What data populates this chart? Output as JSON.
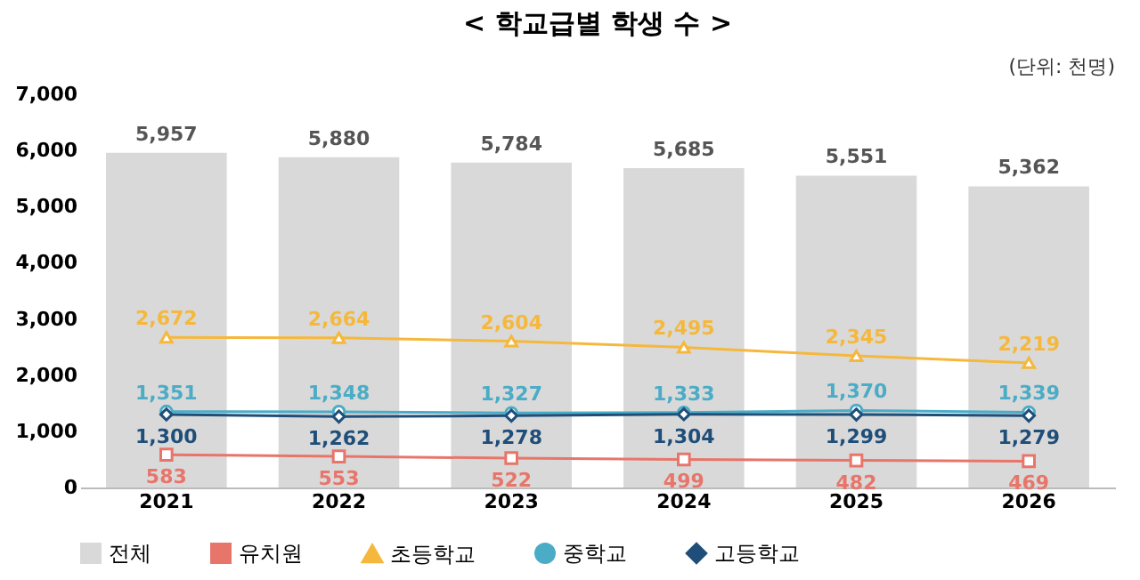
{
  "chart_data": {
    "type": "bar",
    "title": "< 학교급별 학생 수 >",
    "annotations": [
      "(단위: 천명)"
    ],
    "categories": [
      "2021",
      "2022",
      "2023",
      "2024",
      "2025",
      "2026"
    ],
    "series": [
      {
        "name": "전체",
        "color": "#d9d9d9",
        "values": [
          5957,
          5880,
          5784,
          5685,
          5551,
          5362
        ],
        "value_labels": [
          "5,957",
          "5,880",
          "5,784",
          "5,685",
          "5,551",
          "5,362"
        ]
      },
      {
        "name": "유치원",
        "type": "line",
        "color": "#e8756a",
        "marker": "square",
        "values": [
          583,
          553,
          522,
          499,
          482,
          469
        ],
        "value_labels": [
          "583",
          "553",
          "522",
          "499",
          "482",
          "469"
        ]
      },
      {
        "name": "초등학교",
        "type": "line",
        "color": "#f5b83d",
        "marker": "triangle",
        "values": [
          2672,
          2664,
          2604,
          2495,
          2345,
          2219
        ],
        "value_labels": [
          "2,672",
          "2,664",
          "2,604",
          "2,495",
          "2,345",
          "2,219"
        ]
      },
      {
        "name": "중학교",
        "type": "line",
        "color": "#4bacc6",
        "marker": "circle",
        "values": [
          1351,
          1348,
          1327,
          1333,
          1370,
          1339
        ],
        "value_labels": [
          "1,351",
          "1,348",
          "1,327",
          "1,333",
          "1,370",
          "1,339"
        ]
      },
      {
        "name": "고등학교",
        "type": "line",
        "color": "#1f4e79",
        "marker": "diamond",
        "values": [
          1300,
          1262,
          1278,
          1304,
          1299,
          1279
        ],
        "value_labels": [
          "1,300",
          "1,262",
          "1,278",
          "1,304",
          "1,299",
          "1,279"
        ]
      }
    ],
    "ylim": [
      0,
      7000
    ],
    "yticks": [
      {
        "value": 0,
        "label": "0"
      },
      {
        "value": 1000,
        "label": "1,000"
      },
      {
        "value": 2000,
        "label": "2,000"
      },
      {
        "value": 3000,
        "label": "3,000"
      },
      {
        "value": 4000,
        "label": "4,000"
      },
      {
        "value": 5000,
        "label": "5,000"
      },
      {
        "value": 6000,
        "label": "6,000"
      },
      {
        "value": 7000,
        "label": "7,000"
      }
    ],
    "grid": false,
    "legend": "bottom"
  }
}
